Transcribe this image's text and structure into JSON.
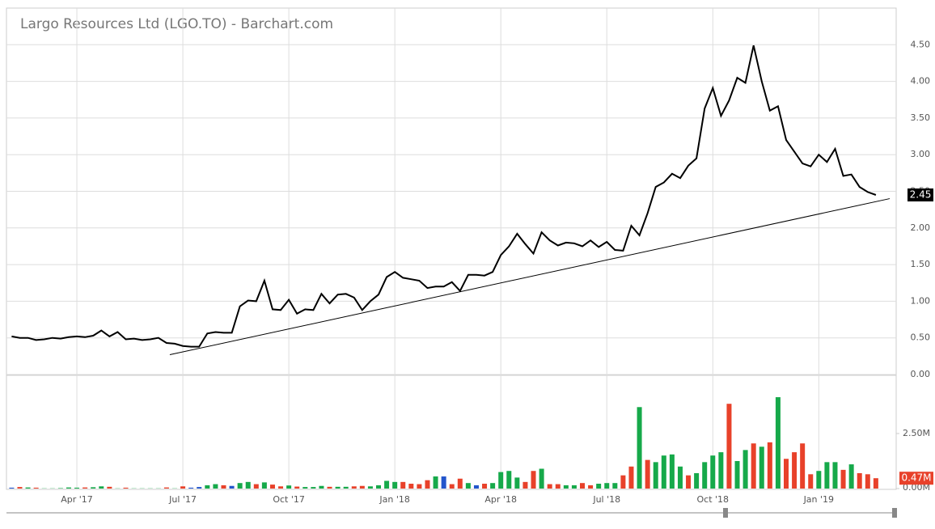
{
  "chart_data": [
    {
      "type": "line",
      "title": "Largo Resources Ltd (LGO.TO) - Barchart.com",
      "color": "#000000",
      "values": [
        0.52,
        0.5,
        0.5,
        0.47,
        0.48,
        0.5,
        0.49,
        0.51,
        0.52,
        0.51,
        0.53,
        0.6,
        0.52,
        0.58,
        0.48,
        0.49,
        0.47,
        0.48,
        0.5,
        0.43,
        0.42,
        0.39,
        0.38,
        0.38,
        0.56,
        0.58,
        0.57,
        0.57,
        0.93,
        1.01,
        1.0,
        1.28,
        0.89,
        0.88,
        1.02,
        0.83,
        0.89,
        0.88,
        1.1,
        0.97,
        1.09,
        1.1,
        1.05,
        0.88,
        1.0,
        1.09,
        1.33,
        1.4,
        1.32,
        1.3,
        1.28,
        1.18,
        1.2,
        1.2,
        1.26,
        1.14,
        1.36,
        1.36,
        1.35,
        1.4,
        1.63,
        1.75,
        1.92,
        1.78,
        1.65,
        1.94,
        1.83,
        1.76,
        1.8,
        1.79,
        1.75,
        1.83,
        1.74,
        1.81,
        1.7,
        1.69,
        2.03,
        1.9,
        2.2,
        2.56,
        2.62,
        2.74,
        2.68,
        2.85,
        2.95,
        3.63,
        3.91,
        3.53,
        3.74,
        4.05,
        3.98,
        4.49,
        4.0,
        3.6,
        3.66,
        3.2,
        3.04,
        2.88,
        2.84,
        3.0,
        2.9,
        3.08,
        2.71,
        2.73,
        2.56,
        2.49,
        2.45
      ],
      "last_label": "2.45",
      "trendline": {
        "x": [
          19.4,
          107.7
        ],
        "values": [
          0.27,
          2.4
        ]
      },
      "ylim": [
        0,
        5
      ],
      "yticks": [
        {
          "value": 0,
          "label": "0.00"
        },
        {
          "value": 0.5,
          "label": "0.50"
        },
        {
          "value": 1,
          "label": "1.00"
        },
        {
          "value": 1.5,
          "label": "1.50"
        },
        {
          "value": 2,
          "label": "2.00"
        },
        {
          "value": 2.5,
          "label": "2.50"
        },
        {
          "value": 3,
          "label": "3.00"
        },
        {
          "value": 3.5,
          "label": "3.50"
        },
        {
          "value": 4,
          "label": "4.00"
        },
        {
          "value": 4.5,
          "label": "4.50"
        }
      ],
      "grid": true
    },
    {
      "type": "bar",
      "categories": [
        null,
        null,
        null,
        null,
        null,
        null,
        null,
        null,
        "Apr '17",
        null,
        null,
        null,
        null,
        null,
        null,
        null,
        null,
        null,
        null,
        null,
        null,
        "Jul '17",
        null,
        null,
        null,
        null,
        null,
        null,
        null,
        null,
        null,
        null,
        null,
        null,
        "Oct '17",
        null,
        null,
        null,
        null,
        null,
        null,
        null,
        null,
        null,
        null,
        null,
        null,
        "Jan '18",
        null,
        null,
        null,
        null,
        null,
        null,
        null,
        null,
        null,
        null,
        null,
        null,
        "Apr '18",
        null,
        null,
        null,
        null,
        null,
        null,
        null,
        null,
        null,
        null,
        null,
        null,
        "Jul '18",
        null,
        null,
        null,
        null,
        null,
        null,
        null,
        null,
        null,
        null,
        null,
        null,
        "Oct '18",
        null,
        null,
        null,
        null,
        null,
        null,
        null,
        null,
        null,
        null,
        null,
        null,
        "Jan '19",
        null,
        null,
        null,
        null,
        null,
        null,
        null
      ],
      "values": [
        0.04,
        0.07,
        0.05,
        0.04,
        0.01,
        0.01,
        0.02,
        0.05,
        0.04,
        0.05,
        0.06,
        0.1,
        0.08,
        0.01,
        0.04,
        0.01,
        0.01,
        0.01,
        0.01,
        0.05,
        0.01,
        0.1,
        0.04,
        0.07,
        0.15,
        0.2,
        0.15,
        0.12,
        0.25,
        0.3,
        0.2,
        0.28,
        0.18,
        0.1,
        0.14,
        0.09,
        0.07,
        0.07,
        0.12,
        0.08,
        0.08,
        0.08,
        0.1,
        0.12,
        0.1,
        0.15,
        0.35,
        0.3,
        0.3,
        0.22,
        0.2,
        0.38,
        0.55,
        0.55,
        0.2,
        0.45,
        0.25,
        0.15,
        0.22,
        0.25,
        0.75,
        0.8,
        0.5,
        0.3,
        0.8,
        0.9,
        0.2,
        0.2,
        0.15,
        0.15,
        0.25,
        0.15,
        0.22,
        0.25,
        0.25,
        0.6,
        1.0,
        3.7,
        1.3,
        1.2,
        1.5,
        1.55,
        1.0,
        0.6,
        0.7,
        1.2,
        1.5,
        1.65,
        3.85,
        1.25,
        1.75,
        2.05,
        1.9,
        2.1,
        4.15,
        1.35,
        1.65,
        2.05,
        0.65,
        0.8,
        1.2,
        1.2,
        0.85,
        1.1,
        0.7,
        0.65,
        0.47
      ],
      "colors": [
        "#2255cc",
        "#e8412a",
        "#16a94a",
        "#e8412a",
        "#16a94a",
        "#16a94a",
        "#16a94a",
        "#16a94a",
        "#16a94a",
        "#e8412a",
        "#16a94a",
        "#16a94a",
        "#e8412a",
        "#16a94a",
        "#e8412a",
        "#16a94a",
        "#16a94a",
        "#16a94a",
        "#16a94a",
        "#e8412a",
        "#16a94a",
        "#e8412a",
        "#2255cc",
        "#2255cc",
        "#16a94a",
        "#16a94a",
        "#e8412a",
        "#2255cc",
        "#16a94a",
        "#16a94a",
        "#e8412a",
        "#16a94a",
        "#e8412a",
        "#e8412a",
        "#16a94a",
        "#e8412a",
        "#16a94a",
        "#16a94a",
        "#16a94a",
        "#e8412a",
        "#16a94a",
        "#16a94a",
        "#e8412a",
        "#e8412a",
        "#16a94a",
        "#16a94a",
        "#16a94a",
        "#16a94a",
        "#e8412a",
        "#e8412a",
        "#e8412a",
        "#e8412a",
        "#16a94a",
        "#2255cc",
        "#e8412a",
        "#e8412a",
        "#16a94a",
        "#2255cc",
        "#e8412a",
        "#16a94a",
        "#16a94a",
        "#16a94a",
        "#16a94a",
        "#e8412a",
        "#e8412a",
        "#16a94a",
        "#e8412a",
        "#e8412a",
        "#16a94a",
        "#16a94a",
        "#e8412a",
        "#e8412a",
        "#16a94a",
        "#16a94a",
        "#16a94a",
        "#e8412a",
        "#e8412a",
        "#16a94a",
        "#e8412a",
        "#16a94a",
        "#16a94a",
        "#16a94a",
        "#16a94a",
        "#e8412a",
        "#16a94a",
        "#16a94a",
        "#16a94a",
        "#16a94a",
        "#e8412a",
        "#16a94a",
        "#16a94a",
        "#e8412a",
        "#16a94a",
        "#e8412a",
        "#16a94a",
        "#e8412a",
        "#e8412a",
        "#e8412a",
        "#e8412a",
        "#16a94a",
        "#16a94a",
        "#16a94a",
        "#e8412a",
        "#16a94a",
        "#e8412a",
        "#e8412a",
        "#e8412a"
      ],
      "last_label": "0.47M",
      "ylim": [
        0,
        5.07
      ],
      "yticks": [
        {
          "value": 0,
          "label": "0.00M"
        },
        {
          "value": 2.5,
          "label": "2.50M"
        }
      ],
      "grid": true
    }
  ]
}
